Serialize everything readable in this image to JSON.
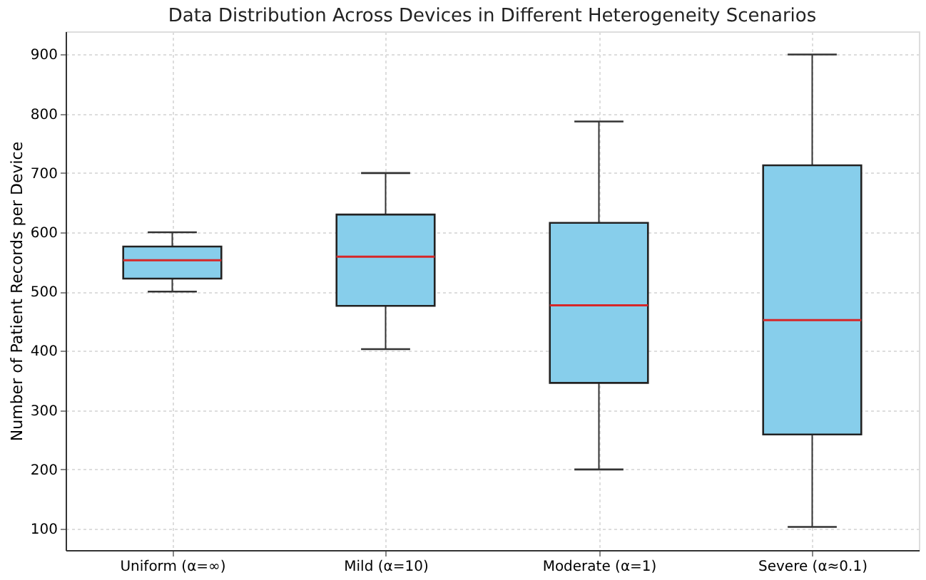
{
  "chart_data": {
    "type": "box",
    "title": "Data Distribution Across Devices in Different Heterogeneity Scenarios",
    "ylabel": "Number of Patient Records per Device",
    "categories": [
      "Uniform (α=∞)",
      "Mild (α=10)",
      "Moderate (α=1)",
      "Severe (α≈0.1)"
    ],
    "series": [
      {
        "color": "#87ceeb",
        "boxes": [
          {
            "low": 500,
            "q1": 522,
            "median": 553,
            "q3": 576,
            "high": 600
          },
          {
            "low": 403,
            "q1": 476,
            "median": 559,
            "q3": 630,
            "high": 700
          },
          {
            "low": 200,
            "q1": 346,
            "median": 477,
            "q3": 616,
            "high": 787
          },
          {
            "low": 103,
            "q1": 259,
            "median": 452,
            "q3": 713,
            "high": 900
          }
        ]
      }
    ],
    "ylim": [
      64,
      939
    ],
    "yticks": [
      100,
      200,
      300,
      400,
      500,
      600,
      700,
      800,
      900
    ],
    "grid": true
  }
}
